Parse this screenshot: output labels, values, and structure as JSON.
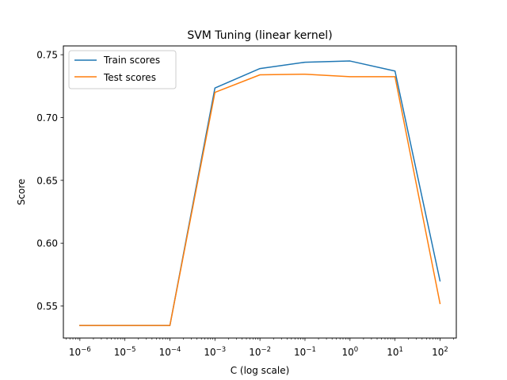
{
  "chart_data": {
    "type": "line",
    "title": "SVM Tuning (linear kernel)",
    "xlabel": "C (log scale)",
    "ylabel": "Score",
    "xscale": "log",
    "x": [
      1e-06,
      1e-05,
      0.0001,
      0.001,
      0.01,
      0.1,
      1,
      10,
      100
    ],
    "x_tick_labels": [
      {
        "base": "10",
        "exp": "−6"
      },
      {
        "base": "10",
        "exp": "−5"
      },
      {
        "base": "10",
        "exp": "−4"
      },
      {
        "base": "10",
        "exp": "−3"
      },
      {
        "base": "10",
        "exp": "−2"
      },
      {
        "base": "10",
        "exp": "−1"
      },
      {
        "base": "10",
        "exp": "0"
      },
      {
        "base": "10",
        "exp": "1"
      },
      {
        "base": "10",
        "exp": "2"
      }
    ],
    "y_ticks": [
      0.55,
      0.6,
      0.65,
      0.7,
      0.75
    ],
    "y_tick_labels": [
      "0.55",
      "0.60",
      "0.65",
      "0.70",
      "0.75"
    ],
    "xlim": [
      4.3e-07,
      230
    ],
    "ylim": [
      0.5245,
      0.757
    ],
    "grid": false,
    "legend_position": "upper-left",
    "series": [
      {
        "name": "Train scores",
        "color": "#1f77b4",
        "values": [
          0.5345,
          0.5345,
          0.5345,
          0.7235,
          0.739,
          0.744,
          0.745,
          0.737,
          0.57
        ]
      },
      {
        "name": "Test scores",
        "color": "#ff7f0e",
        "values": [
          0.5345,
          0.5345,
          0.5345,
          0.72,
          0.734,
          0.7345,
          0.7325,
          0.7325,
          0.552
        ]
      }
    ]
  }
}
